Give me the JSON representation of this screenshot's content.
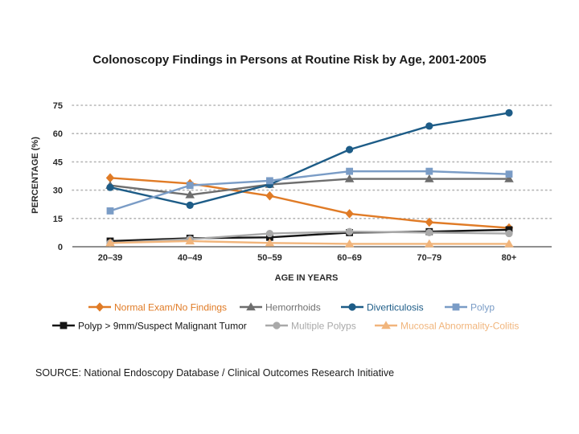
{
  "chart_data": {
    "type": "line",
    "title": "Colonoscopy Findings in Persons at Routine Risk by Age, 2001-2005",
    "xlabel": "AGE IN YEARS",
    "ylabel": "PERCENTAGE (%)",
    "categories": [
      "20–39",
      "40–49",
      "50–59",
      "60–69",
      "70–79",
      "80+"
    ],
    "yticks": [
      "75",
      "60",
      "45",
      "30",
      "15",
      "0"
    ],
    "ylim": [
      0,
      75
    ],
    "grid": true,
    "legend_position": "bottom",
    "series": [
      {
        "name": "Normal Exam/No Findings",
        "color": "#e07b26",
        "marker": "diamond",
        "values": [
          36.5,
          33.5,
          27,
          17.5,
          13,
          10
        ]
      },
      {
        "name": "Hemorrhoids",
        "color": "#6e6e6e",
        "marker": "triangle",
        "values": [
          32.5,
          27.5,
          33,
          36,
          36,
          36
        ]
      },
      {
        "name": "Diverticulosis",
        "color": "#1d5c87",
        "marker": "circle",
        "values": [
          31.5,
          22,
          33,
          51.5,
          64,
          71
        ]
      },
      {
        "name": "Polyp",
        "color": "#7a9cc6",
        "marker": "square",
        "values": [
          19,
          32.5,
          35,
          40,
          40,
          38.5
        ]
      },
      {
        "name": "Polyp > 9mm/Suspect Malignant Tumor",
        "color": "#151515",
        "marker": "square",
        "values": [
          3,
          4.5,
          5,
          7.5,
          8,
          9
        ]
      },
      {
        "name": "Multiple Polyps",
        "color": "#a9a9a9",
        "marker": "circle",
        "values": [
          2,
          4,
          7,
          8,
          7.5,
          7
        ]
      },
      {
        "name": "Mucosal Abnormality-Colitis",
        "color": "#f1b57c",
        "marker": "triangle",
        "values": [
          2,
          3,
          2,
          1.5,
          1.5,
          1.5
        ]
      }
    ]
  },
  "source": "SOURCE: National Endoscopy Database / Clinical Outcomes Research Initiative"
}
